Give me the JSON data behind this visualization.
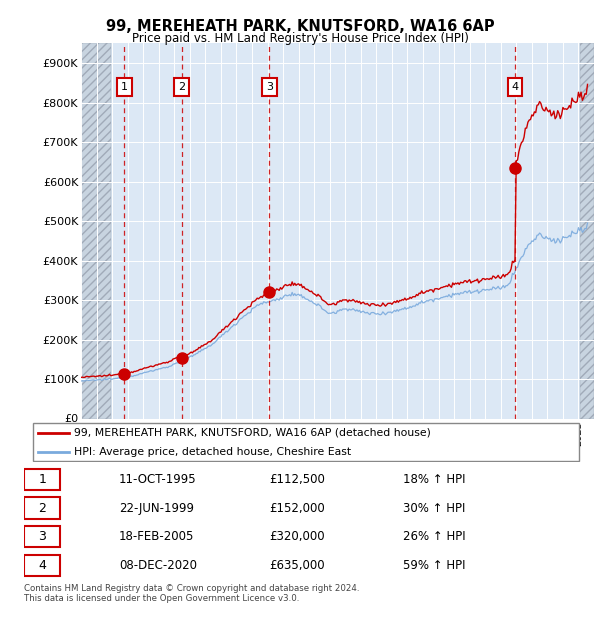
{
  "title1": "99, MEREHEATH PARK, KNUTSFORD, WA16 6AP",
  "title2": "Price paid vs. HM Land Registry's House Price Index (HPI)",
  "ylim": [
    0,
    950000
  ],
  "yticks": [
    0,
    100000,
    200000,
    300000,
    400000,
    500000,
    600000,
    700000,
    800000,
    900000
  ],
  "ytick_labels": [
    "£0",
    "£100K",
    "£200K",
    "£300K",
    "£400K",
    "£500K",
    "£600K",
    "£700K",
    "£800K",
    "£900K"
  ],
  "xlim_start": 1993.0,
  "xlim_end": 2026.0,
  "sale_dates": [
    1995.78,
    1999.47,
    2005.12,
    2020.92
  ],
  "sale_prices": [
    112500,
    152000,
    320000,
    635000
  ],
  "sale_labels": [
    "1",
    "2",
    "3",
    "4"
  ],
  "property_color": "#cc0000",
  "hpi_color": "#7aaadd",
  "chart_bg": "#dce8f5",
  "hatch_bg": "#c8d0dc",
  "legend_property": "99, MEREHEATH PARK, KNUTSFORD, WA16 6AP (detached house)",
  "legend_hpi": "HPI: Average price, detached house, Cheshire East",
  "table_data": [
    [
      "1",
      "11-OCT-1995",
      "£112,500",
      "18% ↑ HPI"
    ],
    [
      "2",
      "22-JUN-1999",
      "£152,000",
      "30% ↑ HPI"
    ],
    [
      "3",
      "18-FEB-2005",
      "£320,000",
      "26% ↑ HPI"
    ],
    [
      "4",
      "08-DEC-2020",
      "£635,000",
      "59% ↑ HPI"
    ]
  ],
  "footer": "Contains HM Land Registry data © Crown copyright and database right 2024.\nThis data is licensed under the Open Government Licence v3.0."
}
